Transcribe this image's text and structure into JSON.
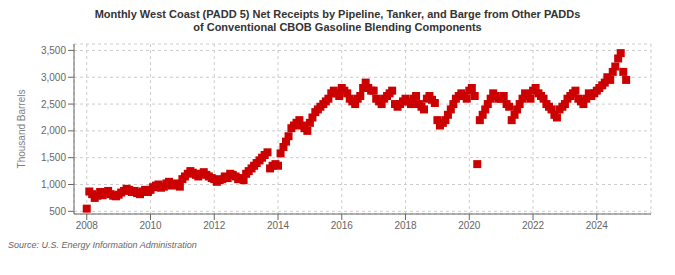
{
  "chart_data": {
    "type": "scatter",
    "title": "Monthly West Coast (PADD 5) Net Receipts by Pipeline, Tanker, and Barge from Other PADDs\nof Conventional CBOB Gasoline Blending Components",
    "ylabel": "Thousand Barrels",
    "annotations": [
      "Source: U.S. Energy Information Administration"
    ],
    "color": "#cc0000",
    "marker": "square",
    "grid": true,
    "xlim": [
      2007.6,
      2025.7
    ],
    "xticks": [
      2008,
      2010,
      2012,
      2014,
      2016,
      2018,
      2020,
      2022,
      2024
    ],
    "ylim": [
      450,
      3620
    ],
    "yticks": [
      500,
      {
        "value": 1000,
        "label": "1,000"
      },
      {
        "value": 1500,
        "label": "1,500"
      },
      {
        "value": 2000,
        "label": "2,000"
      },
      {
        "value": 2500,
        "label": "2,500"
      },
      {
        "value": 3000,
        "label": "3,000"
      },
      {
        "value": 3500,
        "label": "3,500"
      }
    ],
    "x": [
      2008.0,
      2008.08,
      2008.17,
      2008.25,
      2008.33,
      2008.42,
      2008.5,
      2008.58,
      2008.67,
      2008.75,
      2008.83,
      2008.92,
      2009.0,
      2009.08,
      2009.17,
      2009.25,
      2009.33,
      2009.42,
      2009.5,
      2009.58,
      2009.67,
      2009.75,
      2009.83,
      2009.92,
      2010.0,
      2010.08,
      2010.17,
      2010.25,
      2010.33,
      2010.42,
      2010.5,
      2010.58,
      2010.67,
      2010.75,
      2010.83,
      2010.92,
      2011.0,
      2011.08,
      2011.17,
      2011.25,
      2011.33,
      2011.42,
      2011.5,
      2011.58,
      2011.67,
      2011.75,
      2011.83,
      2011.92,
      2012.0,
      2012.08,
      2012.17,
      2012.25,
      2012.33,
      2012.42,
      2012.5,
      2012.58,
      2012.67,
      2012.75,
      2012.83,
      2012.92,
      2013.0,
      2013.08,
      2013.17,
      2013.25,
      2013.33,
      2013.42,
      2013.5,
      2013.58,
      2013.67,
      2013.75,
      2013.83,
      2013.92,
      2014.0,
      2014.08,
      2014.17,
      2014.25,
      2014.33,
      2014.42,
      2014.5,
      2014.58,
      2014.67,
      2014.75,
      2014.83,
      2014.92,
      2015.0,
      2015.08,
      2015.17,
      2015.25,
      2015.33,
      2015.42,
      2015.5,
      2015.58,
      2015.67,
      2015.75,
      2015.83,
      2015.92,
      2016.0,
      2016.08,
      2016.17,
      2016.25,
      2016.33,
      2016.42,
      2016.5,
      2016.58,
      2016.67,
      2016.75,
      2016.83,
      2016.92,
      2017.0,
      2017.08,
      2017.17,
      2017.25,
      2017.33,
      2017.42,
      2017.5,
      2017.58,
      2017.67,
      2017.75,
      2017.83,
      2017.92,
      2018.0,
      2018.08,
      2018.17,
      2018.25,
      2018.33,
      2018.42,
      2018.5,
      2018.58,
      2018.67,
      2018.75,
      2018.83,
      2018.92,
      2019.0,
      2019.08,
      2019.17,
      2019.25,
      2019.33,
      2019.42,
      2019.5,
      2019.58,
      2019.67,
      2019.75,
      2019.83,
      2019.92,
      2020.0,
      2020.08,
      2020.17,
      2020.25,
      2020.33,
      2020.42,
      2020.5,
      2020.58,
      2020.67,
      2020.75,
      2020.83,
      2020.92,
      2021.0,
      2021.08,
      2021.17,
      2021.25,
      2021.33,
      2021.42,
      2021.5,
      2021.58,
      2021.67,
      2021.75,
      2021.83,
      2021.92,
      2022.0,
      2022.08,
      2022.17,
      2022.25,
      2022.33,
      2022.42,
      2022.5,
      2022.58,
      2022.67,
      2022.75,
      2022.83,
      2022.92,
      2023.0,
      2023.08,
      2023.17,
      2023.25,
      2023.33,
      2023.42,
      2023.5,
      2023.58,
      2023.67,
      2023.75,
      2023.83,
      2023.92,
      2024.0,
      2024.08,
      2024.17,
      2024.25,
      2024.33,
      2024.42,
      2024.5,
      2024.58,
      2024.67,
      2024.75,
      2024.83,
      2024.92
    ],
    "values": [
      550,
      870,
      820,
      750,
      790,
      860,
      800,
      840,
      880,
      820,
      790,
      780,
      810,
      850,
      880,
      920,
      900,
      860,
      880,
      840,
      820,
      870,
      900,
      860,
      900,
      950,
      980,
      1000,
      940,
      960,
      1020,
      1050,
      980,
      1000,
      1020,
      960,
      1100,
      1150,
      1200,
      1250,
      1220,
      1180,
      1150,
      1200,
      1230,
      1180,
      1150,
      1120,
      1100,
      1050,
      1080,
      1100,
      1150,
      1120,
      1200,
      1180,
      1150,
      1100,
      1120,
      1080,
      1200,
      1250,
      1300,
      1350,
      1400,
      1450,
      1500,
      1550,
      1600,
      1300,
      1350,
      1380,
      1350,
      1580,
      1700,
      1800,
      1900,
      2050,
      2100,
      2150,
      2200,
      2100,
      2050,
      2000,
      2150,
      2250,
      2350,
      2400,
      2450,
      2500,
      2550,
      2600,
      2700,
      2750,
      2700,
      2650,
      2800,
      2750,
      2700,
      2600,
      2550,
      2500,
      2600,
      2650,
      2800,
      2900,
      2800,
      2750,
      2750,
      2600,
      2550,
      2500,
      2600,
      2650,
      2700,
      2750,
      2500,
      2450,
      2500,
      2550,
      2600,
      2550,
      2500,
      2600,
      2650,
      2500,
      2450,
      2400,
      2600,
      2650,
      2580,
      2520,
      2200,
      2100,
      2150,
      2200,
      2300,
      2400,
      2500,
      2600,
      2650,
      2700,
      2650,
      2600,
      2750,
      2800,
      2650,
      1380,
      2200,
      2300,
      2400,
      2500,
      2600,
      2700,
      2650,
      2600,
      2600,
      2650,
      2500,
      2450,
      2200,
      2300,
      2400,
      2500,
      2600,
      2700,
      2650,
      2600,
      2750,
      2800,
      2700,
      2650,
      2600,
      2500,
      2450,
      2400,
      2300,
      2250,
      2400,
      2450,
      2500,
      2600,
      2650,
      2700,
      2750,
      2600,
      2550,
      2500,
      2600,
      2700,
      2650,
      2700,
      2750,
      2800,
      2850,
      2900,
      3000,
      2950,
      3100,
      3200,
      3350,
      3450,
      3100,
      2950
    ]
  }
}
